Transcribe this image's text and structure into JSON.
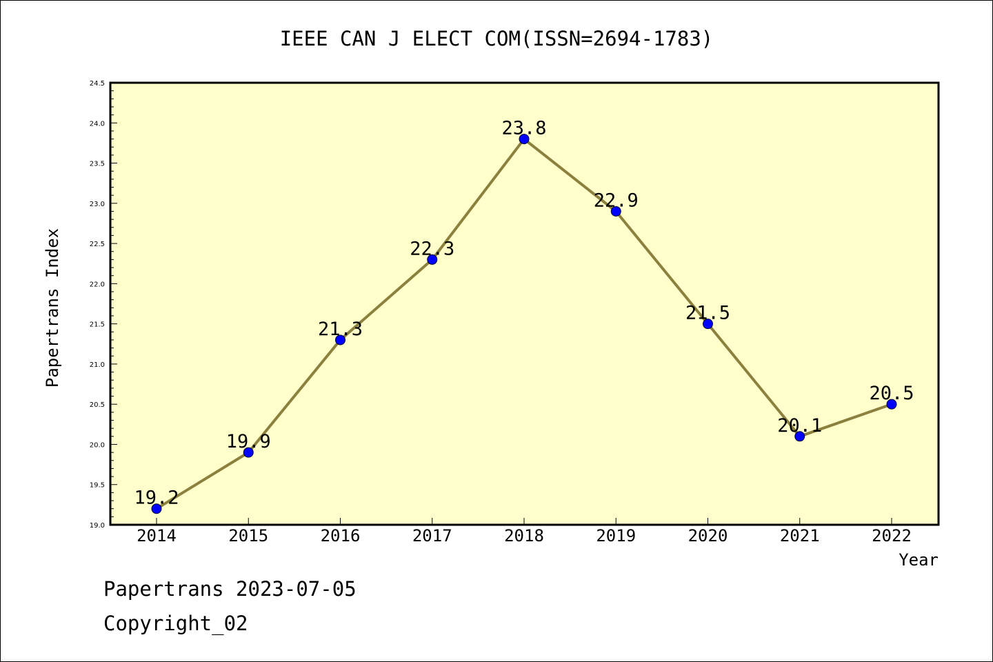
{
  "chart_data": {
    "type": "line",
    "title": "IEEE CAN J ELECT COM(ISSN=2694-1783)",
    "xlabel": "Year",
    "ylabel": "Papertrans Index",
    "x": [
      "2014",
      "2015",
      "2016",
      "2017",
      "2018",
      "2019",
      "2020",
      "2021",
      "2022"
    ],
    "series": [
      {
        "values": [
          19.2,
          19.9,
          21.3,
          22.3,
          23.8,
          22.9,
          21.5,
          20.1,
          20.5
        ],
        "labels": [
          "19.2",
          "19.9",
          "21.3",
          "22.3",
          "23.8",
          "22.9",
          "21.5",
          "20.1",
          "20.5"
        ]
      }
    ],
    "ylim": [
      19.0,
      24.5
    ],
    "yticks": [
      "19.0",
      "19.5",
      "20.0",
      "20.5",
      "21.0",
      "21.5",
      "22.0",
      "22.5",
      "23.0",
      "23.5",
      "24.0",
      "24.5"
    ],
    "grid": false,
    "colors": {
      "plot_background": "#ffffcc",
      "line": "#8b803e",
      "marker": "#0000ff",
      "axis": "#000000"
    }
  },
  "footer": {
    "date_line": "Papertrans 2023-07-05",
    "copyright": "Copyright_02"
  }
}
